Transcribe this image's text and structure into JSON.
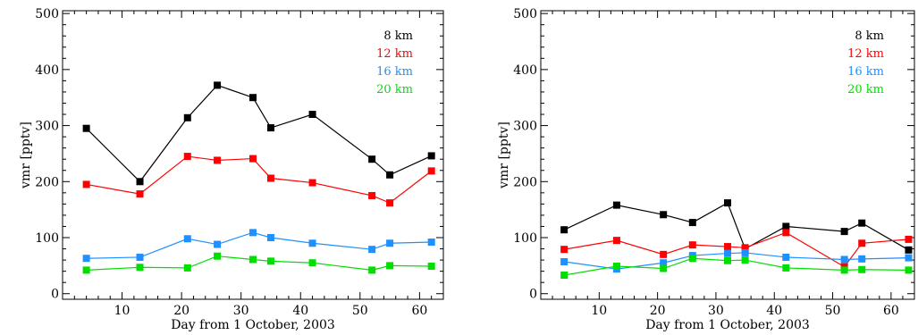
{
  "chart_data": [
    {
      "type": "line",
      "xlabel": "Day from 1 October, 2003",
      "ylabel": "vmr [pptv]",
      "xlim": [
        0,
        64
      ],
      "ylim": [
        -10,
        505
      ],
      "xticks": [
        10,
        20,
        30,
        40,
        50,
        60
      ],
      "yticks": [
        0,
        100,
        200,
        300,
        400,
        500
      ],
      "legend_position": "top-right",
      "x": [
        4,
        13,
        21,
        26,
        32,
        35,
        42,
        52,
        55,
        62
      ],
      "series": [
        {
          "name": "8 km",
          "color": "#000000",
          "values": [
            295,
            200,
            314,
            372,
            350,
            296,
            320,
            240,
            212,
            246
          ]
        },
        {
          "name": "12 km",
          "color": "#ff0000",
          "values": [
            195,
            178,
            245,
            238,
            241,
            206,
            198,
            175,
            162,
            219
          ]
        },
        {
          "name": "16 km",
          "color": "#1e90ff",
          "values": [
            63,
            65,
            98,
            88,
            109,
            100,
            90,
            79,
            90,
            92
          ]
        },
        {
          "name": "20 km",
          "color": "#00e000",
          "values": [
            42,
            47,
            46,
            67,
            61,
            58,
            55,
            42,
            50,
            49
          ]
        }
      ]
    },
    {
      "type": "line",
      "xlabel": "Day from 1 October, 2003",
      "ylabel": "vmr [pptv]",
      "xlim": [
        0,
        64
      ],
      "ylim": [
        -10,
        505
      ],
      "xticks": [
        10,
        20,
        30,
        40,
        50,
        60
      ],
      "yticks": [
        0,
        100,
        200,
        300,
        400,
        500
      ],
      "legend_position": "top-right",
      "x": [
        4,
        13,
        21,
        26,
        32,
        35,
        42,
        52,
        55,
        63
      ],
      "series": [
        {
          "name": "8 km",
          "color": "#000000",
          "values": [
            114,
            158,
            141,
            127,
            162,
            80,
            120,
            111,
            126,
            78
          ]
        },
        {
          "name": "12 km",
          "color": "#ff0000",
          "values": [
            79,
            95,
            70,
            87,
            84,
            82,
            109,
            48,
            90,
            97
          ]
        },
        {
          "name": "16 km",
          "color": "#1e90ff",
          "values": [
            57,
            44,
            55,
            68,
            72,
            73,
            65,
            61,
            62,
            64
          ]
        },
        {
          "name": "20 km",
          "color": "#00e000",
          "values": [
            33,
            49,
            45,
            63,
            59,
            60,
            46,
            42,
            43,
            42
          ]
        }
      ]
    }
  ]
}
